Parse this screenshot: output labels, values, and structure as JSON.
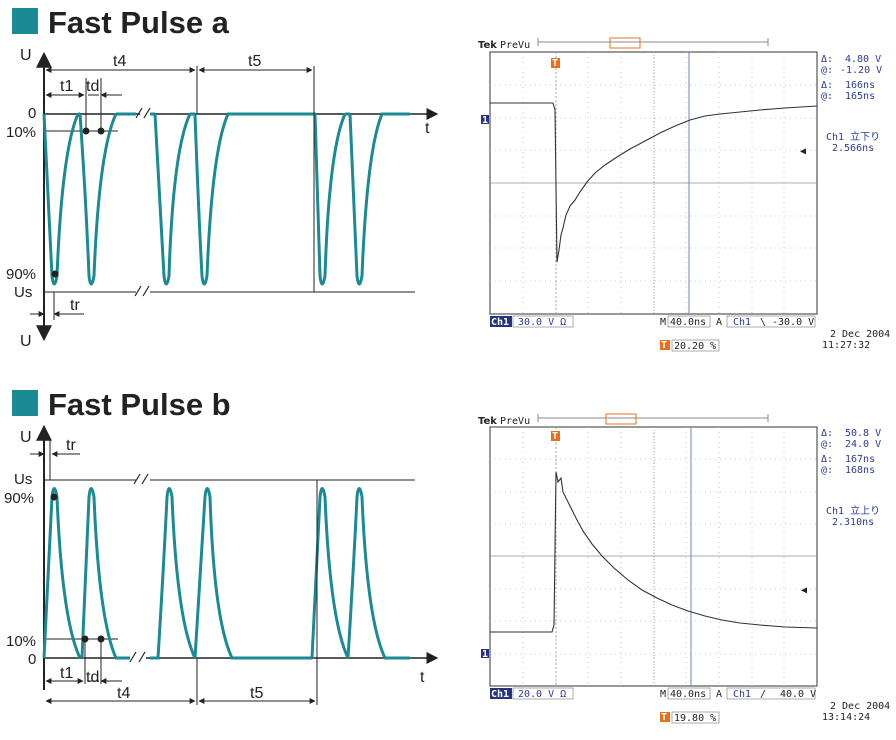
{
  "sections": [
    {
      "title": "Fast Pulse a",
      "diagram": {
        "axis_y_top": "U",
        "axis_y_bottom": "U",
        "axis_t": "t",
        "level_zero": "0",
        "level_10": "10%",
        "level_90": "90%",
        "level_us": "Us",
        "t1": "t1",
        "td": "td",
        "t4": "t4",
        "t5": "t5",
        "tr": "tr"
      },
      "scope": {
        "brand": "Tek",
        "mode": "PreVu",
        "delta_v": "4.80 V",
        "at_v": "-1.20 V",
        "delta_t": "166ns",
        "at_t": "165ns",
        "measure_label": "Ch1 立下り",
        "measure_value": "2.566ns",
        "ch_tag": "Ch1",
        "ch_scale": "30.0 V Ω",
        "timebase_tag": "M",
        "timebase": "40.0ns",
        "trig_tag": "A",
        "trig_ch": "Ch1",
        "trig_slope": "\\",
        "trig_level": "-30.0 V",
        "trig_pos": "20.20 %",
        "date": "2 Dec  2004",
        "time": "11:27:32"
      }
    },
    {
      "title": "Fast Pulse b",
      "diagram": {
        "axis_y_top": "U",
        "axis_t": "t",
        "level_us": "Us",
        "level_90": "90%",
        "level_10": "10%",
        "level_zero": "0",
        "tr": "tr",
        "t1": "t1",
        "td": "td",
        "t4": "t4",
        "t5": "t5"
      },
      "scope": {
        "brand": "Tek",
        "mode": "PreVu",
        "delta_v": "50.8 V",
        "at_v": "24.0 V",
        "delta_t": "167ns",
        "at_t": "168ns",
        "measure_label": "Ch1 立上り",
        "measure_value": "2.310ns",
        "ch_tag": "Ch1",
        "ch_scale": "20.0 V Ω",
        "timebase_tag": "M",
        "timebase": "40.0ns",
        "trig_tag": "A",
        "trig_ch": "Ch1",
        "trig_slope": "/",
        "trig_level": "40.0 V",
        "trig_pos": "19.80 %",
        "date": "2 Dec  2004",
        "time": "13:14:24"
      }
    }
  ],
  "colors": {
    "accent": "#1a8a95",
    "trace": "#1a8a95",
    "cursor": "#6f86c0",
    "grid": "#9aa0b0",
    "scope_tag": "#26347f",
    "trigger": "#e8701c"
  }
}
